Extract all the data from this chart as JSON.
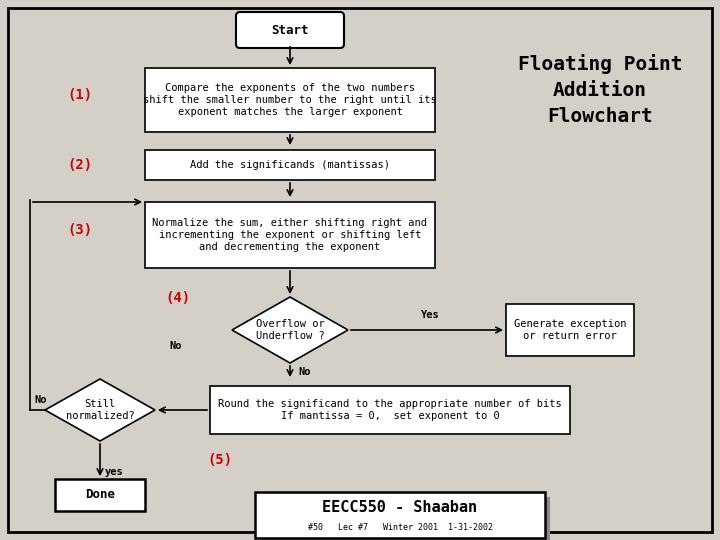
{
  "bg_color": "#d4d0c8",
  "box_color": "#ffffff",
  "box_edge": "#000000",
  "title_color": "#000000",
  "step_label_color": "#cc0000",
  "arrow_color": "#000000",
  "title": "Floating Point\nAddition\nFlowchart",
  "footer": "EECC550 - Shaaban",
  "footer_sub": "#50   Lec #7   Winter 2001  1-31-2002",
  "start_text": "Start",
  "step1_text": "Compare the exponents of the two numbers\nshift the smaller number to the right until its\nexponent matches the larger exponent",
  "step2_text": "Add the significands (mantissas)",
  "step3_text": "Normalize the sum, either shifting right and\nincrementing the exponent or shifting left\nand decrementing the exponent",
  "step4_diamond": "Overflow or\nUnderflow ?",
  "step4_yes": "Generate exception\nor return error",
  "step4_no_label": "No",
  "step4_yes_label": "Yes",
  "step5_text": "Round the significand to the appropriate number of bits\nIf mantissa = 0,  set exponent to 0",
  "still_norm_text": "Still\nnormalized?",
  "done_text": "Done",
  "label1": "(1)",
  "label2": "(2)",
  "label3": "(3)",
  "label4": "(4)",
  "label5": "(5)",
  "no_label": "No",
  "yes_label": "yes"
}
